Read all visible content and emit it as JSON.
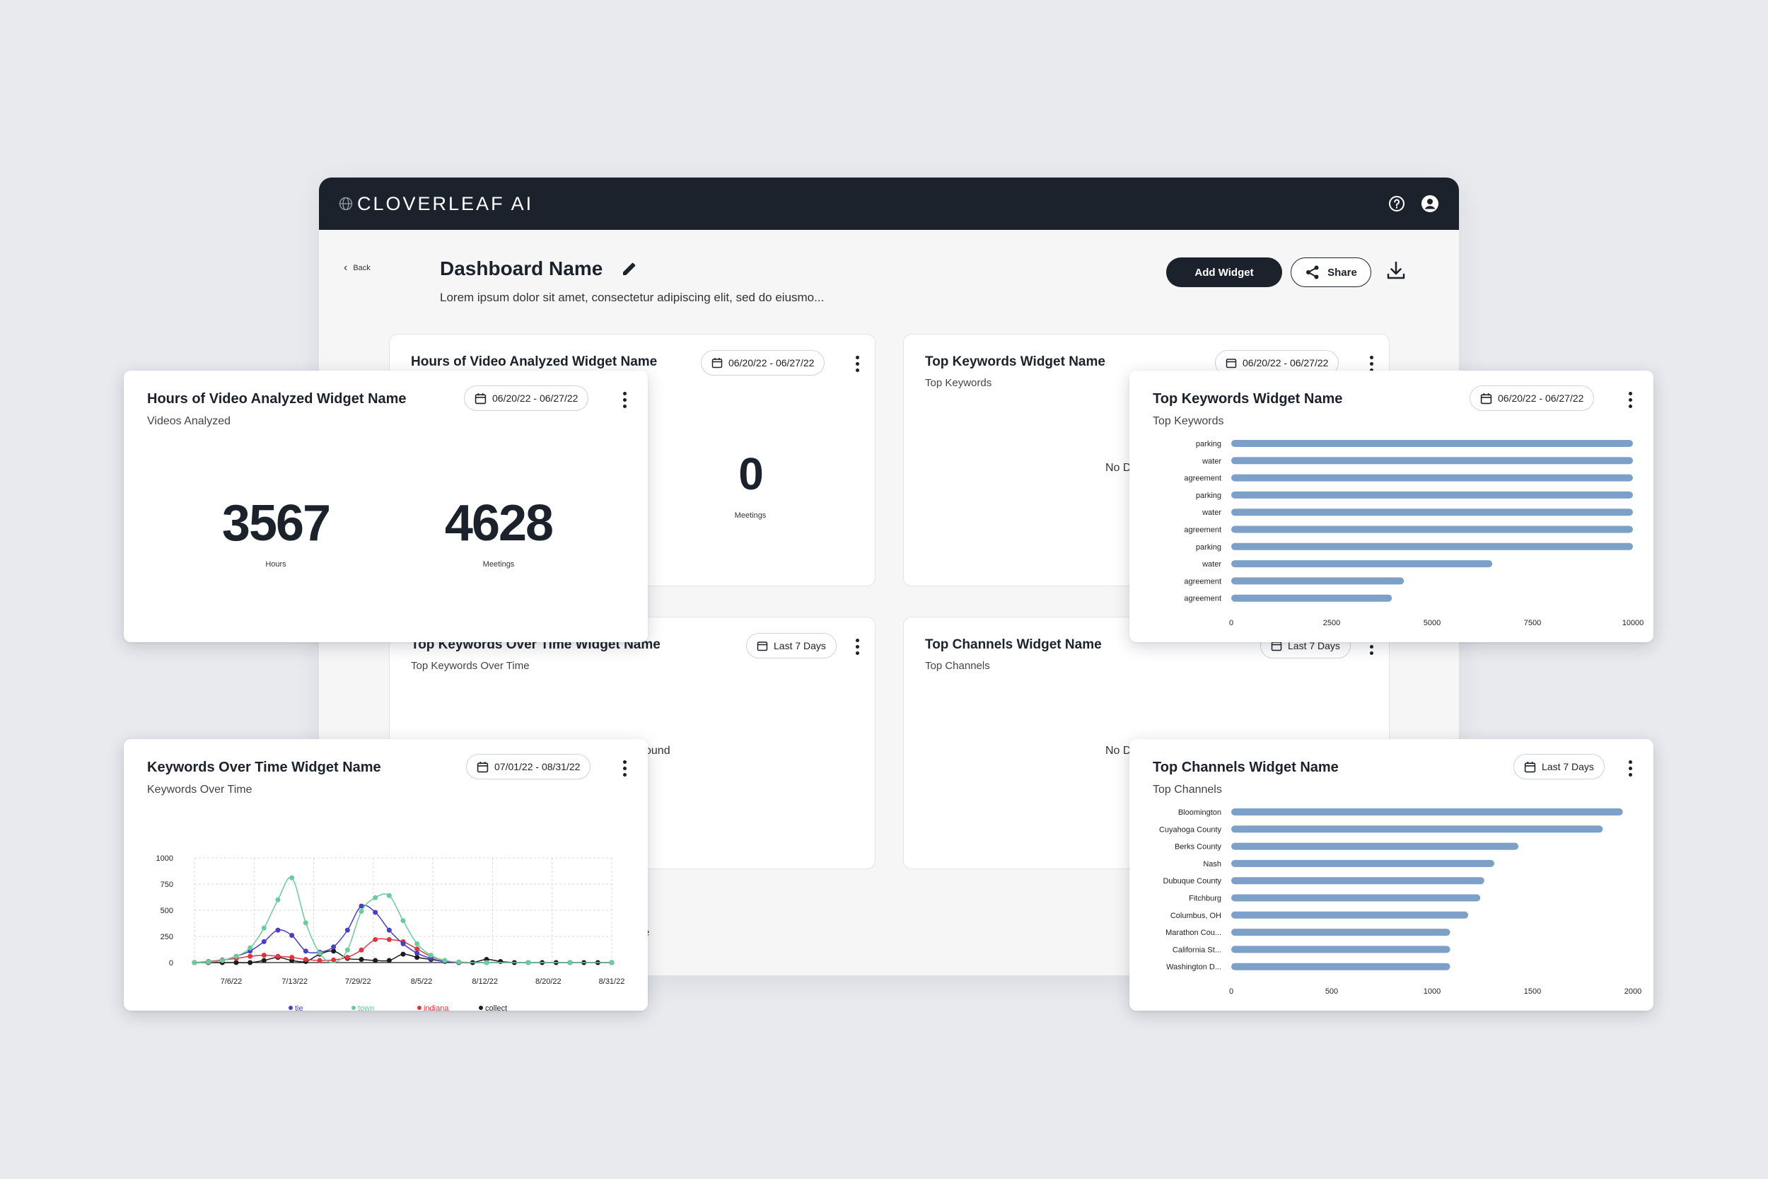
{
  "app": {
    "logo_text": "CLOVERLEAF AI",
    "back_label": "Back",
    "dashboard_title": "Dashboard Name",
    "dashboard_description": "Lorem ipsum dolor sit amet, consectetur adipiscing elit, sed do eiusmo...",
    "add_widget_label": "Add Widget",
    "share_label": "Share"
  },
  "background_widgets": {
    "hours": {
      "title": "Hours of Video Analyzed Widget Name",
      "date": "06/20/22 - 06/27/22",
      "value": "0",
      "value_label": "Meetings"
    },
    "keywords": {
      "title": "Top Keywords Widget Name",
      "subtitle": "Top Keywords",
      "date": "06/20/22 - 06/27/22",
      "no_data": "No D"
    },
    "keywords_time": {
      "title": "Top Keywords Over Time Widget Name",
      "subtitle": "Top Keywords Over Time",
      "date": "Last 7 Days",
      "no_data": "ound",
      "fragment": "e"
    },
    "channels": {
      "title": "Top Channels Widget Name",
      "subtitle": "Top Channels",
      "date": "Last 7 Days",
      "no_data": "No D"
    }
  },
  "hours_widget": {
    "title": "Hours of Video Analyzed Widget Name",
    "subtitle": "Videos Analyzed",
    "date": "06/20/22 - 06/27/22",
    "metrics": [
      {
        "value": "3567",
        "label": "Hours"
      },
      {
        "value": "4628",
        "label": "Meetings"
      }
    ]
  },
  "keywords_widget": {
    "title": "Top Keywords Widget Name",
    "subtitle": "Top Keywords",
    "date": "06/20/22 - 06/27/22"
  },
  "keywords_time_widget": {
    "title": "Keywords Over Time Widget Name",
    "subtitle": "Keywords Over Time",
    "date": "07/01/22 - 08/31/22"
  },
  "channels_widget": {
    "title": "Top Channels Widget Name",
    "subtitle": "Top Channels",
    "date": "Last 7 Days"
  },
  "colors": {
    "bar": "#7da0c8",
    "tie": "#4a3fc0",
    "town": "#6ccb9a",
    "indiana": "#e0343f",
    "collect": "#1c1c1c",
    "dark": "#1c222b"
  },
  "chart_data": [
    {
      "type": "bar",
      "orientation": "horizontal",
      "categories": [
        "parking",
        "water",
        "agreement",
        "parking",
        "water",
        "agreement",
        "parking",
        "water",
        "agreement",
        "agreement"
      ],
      "values": [
        10000,
        10000,
        10000,
        10000,
        10000,
        10000,
        10000,
        6500,
        4300,
        4000
      ],
      "xlim": [
        0,
        10000
      ],
      "xticks": [
        "0",
        "2500",
        "5000",
        "7500",
        "10000"
      ],
      "grid": false
    },
    {
      "type": "line",
      "x": [
        "7/1/22",
        "7/3/22",
        "7/5/22",
        "7/7/22",
        "7/9/22",
        "7/11/22",
        "7/13/22",
        "7/15/22",
        "7/17/22",
        "7/19/22",
        "7/21/22",
        "7/23/22",
        "7/25/22",
        "7/27/22",
        "7/29/22",
        "7/31/22",
        "8/2/22",
        "8/4/22",
        "8/6/22",
        "8/8/22",
        "8/10/22",
        "8/12/22",
        "8/14/22",
        "8/16/22",
        "8/18/22",
        "8/20/22",
        "8/22/22",
        "8/24/22",
        "8/26/22",
        "8/28/22",
        "8/31/22"
      ],
      "xticks": [
        "7/6/22",
        "7/13/22",
        "7/29/22",
        "8/5/22",
        "8/12/22",
        "8/20/22",
        "8/31/22"
      ],
      "ylim": [
        0,
        1000
      ],
      "yticks": [
        "0",
        "250",
        "500",
        "750",
        "1000"
      ],
      "grid": true,
      "legend_position": "bottom",
      "series": [
        {
          "name": "tie",
          "values": [
            0,
            5,
            20,
            60,
            110,
            200,
            310,
            260,
            110,
            100,
            150,
            310,
            540,
            480,
            310,
            180,
            90,
            40,
            10,
            5,
            0,
            0,
            0,
            0,
            0,
            0,
            0,
            0,
            0,
            0,
            0
          ]
        },
        {
          "name": "town",
          "values": [
            0,
            5,
            20,
            60,
            140,
            330,
            600,
            810,
            380,
            90,
            0,
            120,
            490,
            620,
            640,
            400,
            180,
            70,
            20,
            5,
            0,
            0,
            0,
            0,
            0,
            0,
            0,
            0,
            0,
            0,
            0
          ]
        },
        {
          "name": "indiana",
          "values": [
            0,
            10,
            25,
            40,
            60,
            70,
            60,
            50,
            30,
            20,
            25,
            50,
            120,
            220,
            220,
            200,
            130,
            60,
            20,
            0,
            0,
            0,
            0,
            0,
            0,
            0,
            0,
            0,
            0,
            0,
            0
          ]
        },
        {
          "name": "collect",
          "values": [
            0,
            0,
            0,
            0,
            0,
            20,
            50,
            20,
            10,
            80,
            110,
            40,
            30,
            20,
            20,
            80,
            50,
            30,
            10,
            0,
            0,
            30,
            10,
            0,
            0,
            0,
            0,
            0,
            0,
            0,
            0
          ]
        }
      ]
    },
    {
      "type": "bar",
      "orientation": "horizontal",
      "categories": [
        "Bloomington",
        "Cuyahoga County",
        "Berks County",
        "Nash",
        "Dubuque County",
        "Fitchburg",
        "Columbus, OH",
        "Marathon Cou...",
        "California St...",
        "Washington D..."
      ],
      "values": [
        1950,
        1850,
        1430,
        1310,
        1260,
        1240,
        1180,
        1090,
        1090,
        1090
      ],
      "xlim": [
        0,
        2000
      ],
      "xticks": [
        "0",
        "500",
        "1000",
        "1500",
        "2000"
      ],
      "grid": false
    }
  ]
}
